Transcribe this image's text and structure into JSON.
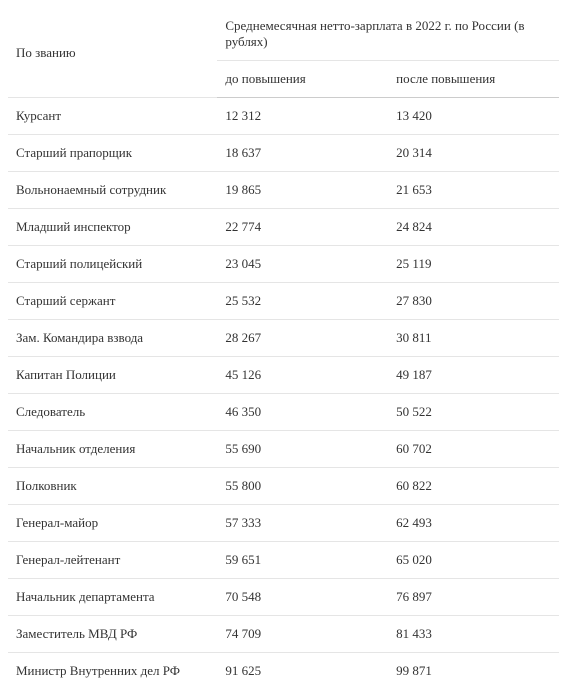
{
  "table": {
    "header_rank": "По званию",
    "header_main": "Среднемесячная нетто-зарплата в 2022 г. по России (в рублях)",
    "header_before": "до повышения",
    "header_after": "после повышения",
    "col_widths": {
      "rank": "38%",
      "before": "31%",
      "after": "31%"
    },
    "border_color": "#e5e5e5",
    "background_color": "#ffffff",
    "text_color": "#333333",
    "font_family": "Georgia, serif",
    "font_size_pt": 10,
    "rows": [
      {
        "rank": "Курсант",
        "before": "12 312",
        "after": "13 420"
      },
      {
        "rank": "Старший прапорщик",
        "before": "18 637",
        "after": "20 314"
      },
      {
        "rank": "Вольнонаемный сотрудник",
        "before": "19 865",
        "after": "21 653"
      },
      {
        "rank": "Младший инспектор",
        "before": "22 774",
        "after": "24 824"
      },
      {
        "rank": "Старший полицейский",
        "before": "23 045",
        "after": "25 119"
      },
      {
        "rank": "Старший сержант",
        "before": "25 532",
        "after": "27 830"
      },
      {
        "rank": "Зам. Командира взвода",
        "before": "28 267",
        "after": "30 811"
      },
      {
        "rank": "Капитан Полиции",
        "before": "45 126",
        "after": "49 187"
      },
      {
        "rank": "Следователь",
        "before": "46 350",
        "after": "50 522"
      },
      {
        "rank": "Начальник отделения",
        "before": "55 690",
        "after": "60 702"
      },
      {
        "rank": "Полковник",
        "before": "55 800",
        "after": "60 822"
      },
      {
        "rank": "Генерал-майор",
        "before": "57 333",
        "after": "62 493"
      },
      {
        "rank": "Генерал-лейтенант",
        "before": "59 651",
        "after": "65 020"
      },
      {
        "rank": "Начальник департамента",
        "before": "70 548",
        "after": "76 897"
      },
      {
        "rank": "Заместитель МВД РФ",
        "before": "74 709",
        "after": "81 433"
      },
      {
        "rank": "Министр Внутренних дел РФ",
        "before": "91 625",
        "after": "99 871"
      }
    ]
  }
}
